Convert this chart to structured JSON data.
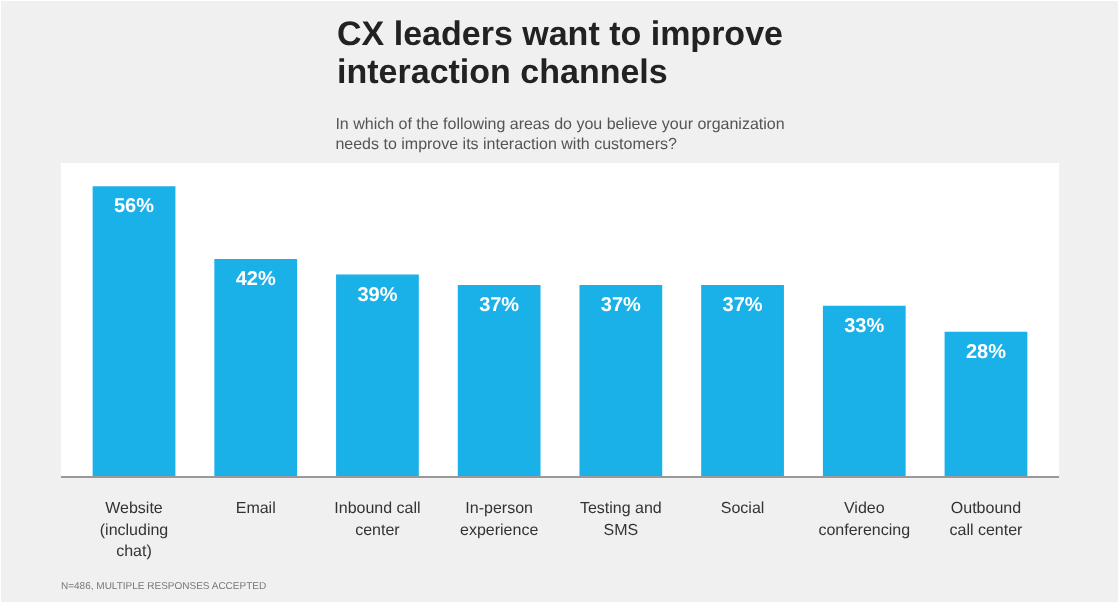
{
  "chart_data": {
    "type": "bar",
    "title": "CX leaders want to improve interaction channels",
    "subtitle": "In which of the following areas do you believe your organization needs to improve its interaction with customers?",
    "categories": [
      "Website (including chat)",
      "Email",
      "Inbound call center",
      "In-person experience",
      "Testing and SMS",
      "Social",
      "Video conferencing",
      "Outbound call center"
    ],
    "values": [
      56,
      42,
      39,
      37,
      37,
      37,
      33,
      28
    ],
    "value_labels": [
      "56%",
      "42%",
      "39%",
      "37%",
      "37%",
      "37%",
      "33%",
      "28%"
    ],
    "color": "#1ab0e8",
    "grid": false,
    "annotations": [
      "N=486, MULTIPLE RESPONSES ACCEPTED"
    ]
  }
}
